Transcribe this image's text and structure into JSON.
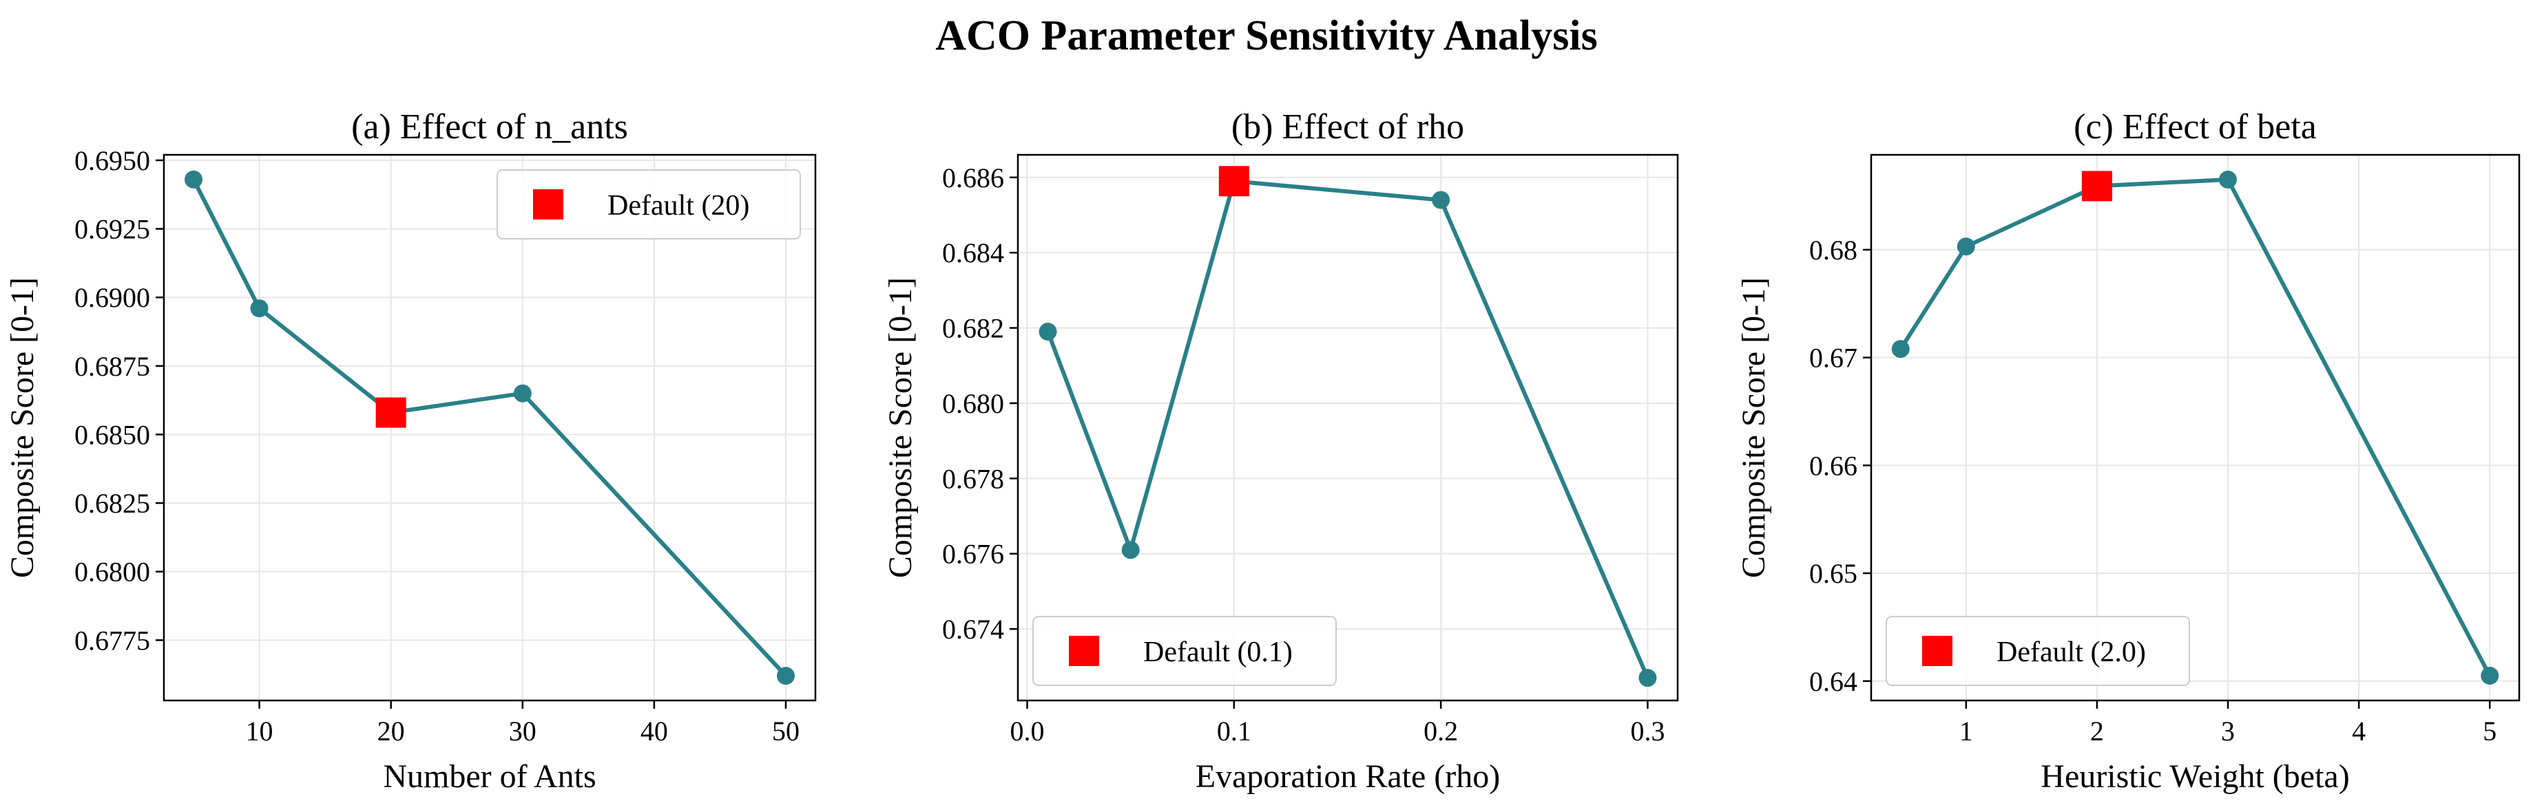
{
  "figure": {
    "title": "ACO Parameter Sensitivity Analysis"
  },
  "colors": {
    "line": "#2a8089",
    "marker": "#2a8089",
    "default_marker": "#ff0000",
    "grid": "#e6e6e6"
  },
  "chart_data": [
    {
      "type": "line",
      "title": "(a) Effect of n_ants",
      "xlabel": "Number of Ants",
      "ylabel": "Composite Score [0-1]",
      "x": [
        5,
        10,
        20,
        30,
        50
      ],
      "values": [
        0.6943,
        0.6896,
        0.6858,
        0.6865,
        0.6762
      ],
      "xlim": [
        2.75,
        52.25
      ],
      "ylim": [
        0.6753,
        0.6952
      ],
      "xticks": [
        10,
        20,
        30,
        40,
        50
      ],
      "xtick_labels": [
        "10",
        "20",
        "30",
        "40",
        "50"
      ],
      "yticks": [
        0.6775,
        0.68,
        0.6825,
        0.685,
        0.6875,
        0.69,
        0.6925,
        0.695
      ],
      "ytick_labels": [
        "0.6775",
        "0.6800",
        "0.6825",
        "0.6850",
        "0.6875",
        "0.6900",
        "0.6925",
        "0.6950"
      ],
      "default_point": {
        "x": 20,
        "y": 0.6858
      },
      "legend": {
        "label": "Default (20)",
        "position": "top-right"
      },
      "grid": true
    },
    {
      "type": "line",
      "title": "(b) Effect of rho",
      "xlabel": "Evaporation Rate (rho)",
      "ylabel": "Composite Score [0-1]",
      "x": [
        0.01,
        0.05,
        0.1,
        0.2,
        0.3
      ],
      "values": [
        0.6819,
        0.6761,
        0.6859,
        0.6854,
        0.6727
      ],
      "xlim": [
        -0.0045,
        0.3145
      ],
      "ylim": [
        0.6721,
        0.6866
      ],
      "xticks": [
        0.0,
        0.1,
        0.2,
        0.3
      ],
      "xtick_labels": [
        "0.0",
        "0.1",
        "0.2",
        "0.3"
      ],
      "yticks": [
        0.674,
        0.676,
        0.678,
        0.68,
        0.682,
        0.684,
        0.686
      ],
      "ytick_labels": [
        "0.674",
        "0.676",
        "0.678",
        "0.680",
        "0.682",
        "0.684",
        "0.686"
      ],
      "default_point": {
        "x": 0.1,
        "y": 0.6859
      },
      "legend": {
        "label": "Default (0.1)",
        "position": "bottom-left"
      },
      "grid": true
    },
    {
      "type": "line",
      "title": "(c) Effect of beta",
      "xlabel": "Heuristic Weight (beta)",
      "ylabel": "Composite Score [0-1]",
      "x": [
        0.5,
        1,
        2,
        3,
        5
      ],
      "values": [
        0.6708,
        0.6803,
        0.6859,
        0.6865,
        0.6405
      ],
      "xlim": [
        0.275,
        5.225
      ],
      "ylim": [
        0.6382,
        0.6888
      ],
      "xticks": [
        1,
        2,
        3,
        4,
        5
      ],
      "xtick_labels": [
        "1",
        "2",
        "3",
        "4",
        "5"
      ],
      "yticks": [
        0.64,
        0.65,
        0.66,
        0.67,
        0.68
      ],
      "ytick_labels": [
        "0.64",
        "0.65",
        "0.66",
        "0.67",
        "0.68"
      ],
      "default_point": {
        "x": 2,
        "y": 0.6859
      },
      "legend": {
        "label": "Default (2.0)",
        "position": "bottom-left"
      },
      "grid": true
    }
  ]
}
